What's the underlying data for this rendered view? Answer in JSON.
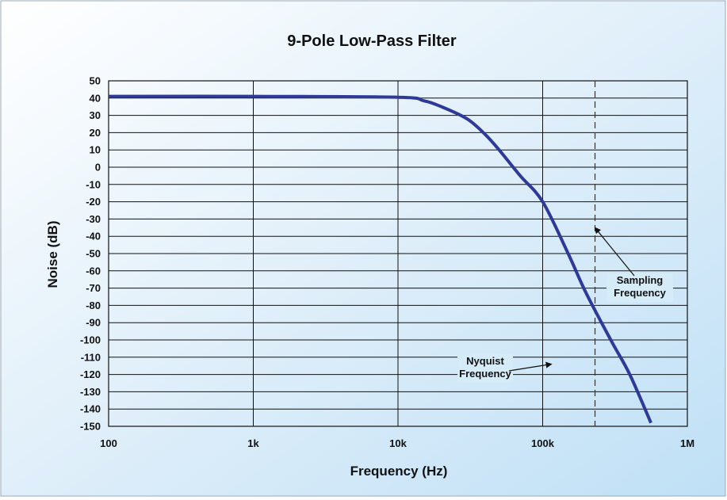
{
  "chart_data": {
    "type": "line",
    "title": "9-Pole Low-Pass Filter",
    "xlabel": "Frequency (Hz)",
    "ylabel": "Noise (dB)",
    "x_scale": "log",
    "xlim": [
      100,
      1000000
    ],
    "ylim": [
      -150,
      50
    ],
    "grid": true,
    "x_ticks": [
      {
        "value": 100,
        "label": "100"
      },
      {
        "value": 1000,
        "label": "1k"
      },
      {
        "value": 10000,
        "label": "10k"
      },
      {
        "value": 100000,
        "label": "100k"
      },
      {
        "value": 1000000,
        "label": "1M"
      }
    ],
    "y_ticks": [
      50,
      40,
      30,
      20,
      10,
      0,
      -10,
      -20,
      -30,
      -40,
      -50,
      -60,
      -70,
      -80,
      -90,
      -100,
      -110,
      -120,
      -130,
      -140,
      -150
    ],
    "series": [
      {
        "color": "#2f3a98",
        "x": [
          100,
          1000,
          10000,
          15000,
          20000,
          30000,
          40000,
          50000,
          70000,
          100000,
          150000,
          200000,
          300000,
          400000,
          560000
        ],
        "y": [
          41,
          41,
          40.5,
          38.5,
          35,
          28,
          19,
          10,
          -5,
          -20,
          -50,
          -73,
          -101,
          -120,
          -148
        ]
      }
    ],
    "reference_lines": [
      {
        "x": 230000,
        "style": "dashed",
        "color": "#333333"
      }
    ],
    "annotations": [
      {
        "text_lines": [
          "Sampling",
          "Frequency"
        ],
        "arrow_to": {
          "x": 230000,
          "y": -35
        }
      },
      {
        "text_lines": [
          "Nyquist",
          "Frequency"
        ],
        "arrow_to": {
          "x": 115000,
          "y": -114
        }
      }
    ],
    "background_color": "#cfe7f7",
    "grid_color": "#111111"
  }
}
